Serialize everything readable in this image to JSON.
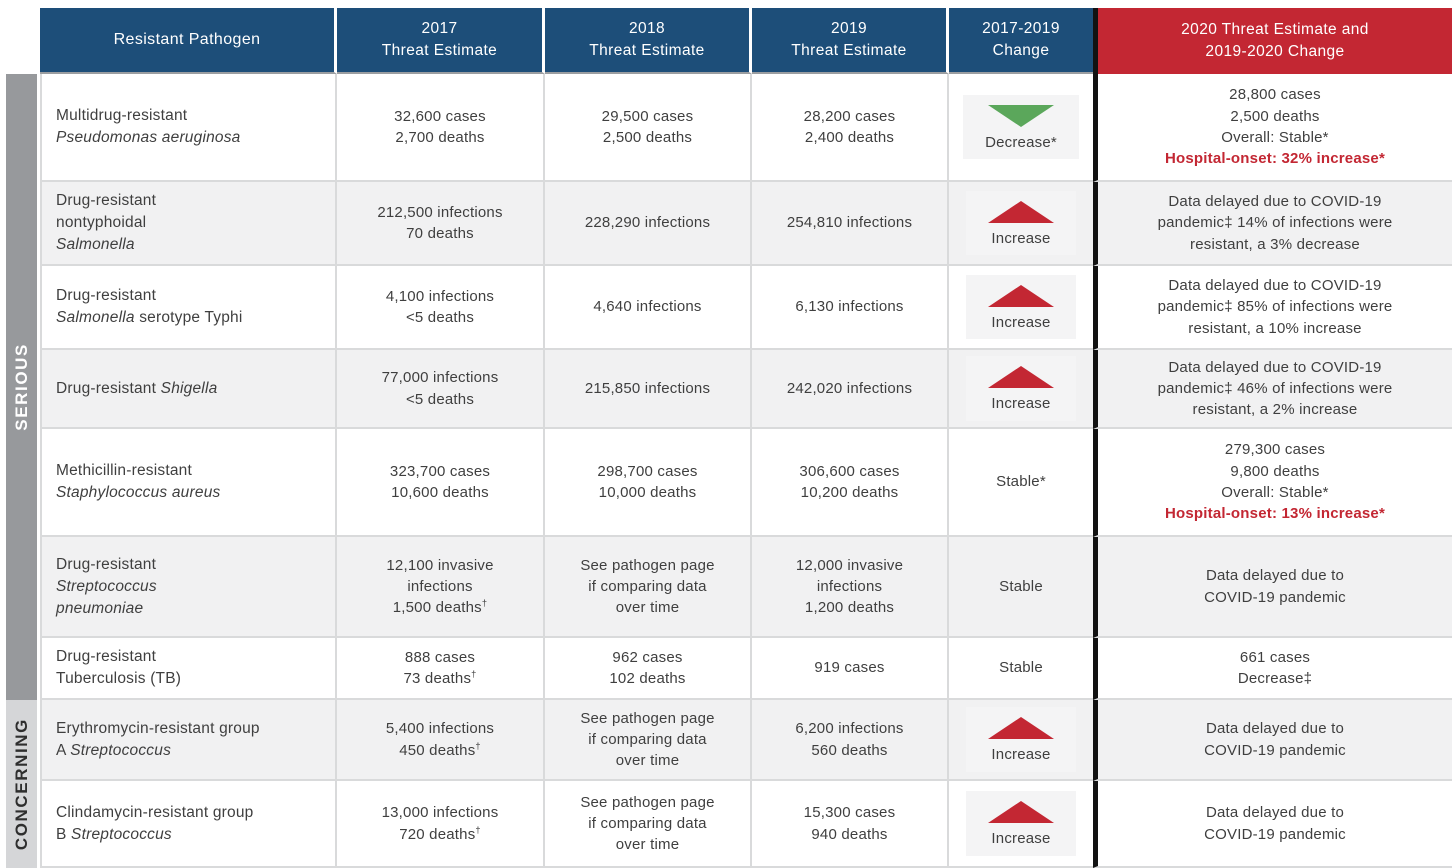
{
  "colors": {
    "header_blue": "#1d4e79",
    "header_red": "#c32733",
    "increase_red": "#c32733",
    "decrease_green": "#5ba75b",
    "band_serious_gray": "#97999c",
    "band_concerning_gray": "#d5d6d8"
  },
  "chart_data": {
    "type": "table",
    "header": {
      "pathogen": {
        "line1": "Resistant Pathogen"
      },
      "y2017": {
        "line1": "2017",
        "line2": "Threat Estimate"
      },
      "y2018": {
        "line1": "2018",
        "line2": "Threat Estimate"
      },
      "y2019": {
        "line1": "2019",
        "line2": "Threat Estimate"
      },
      "change": {
        "line1": "2017-2019",
        "line2": "Change"
      },
      "y2020": {
        "line1": "2020 Threat Estimate and",
        "line2": "2019-2020 Change"
      }
    },
    "sections": [
      {
        "label": "SERIOUS",
        "row_count": 7
      },
      {
        "label": "CONCERNING",
        "row_count": 2
      }
    ],
    "rows": [
      {
        "section": "SERIOUS",
        "pathogen": [
          [
            {
              "t": "Multidrug-resistant"
            }
          ],
          [
            {
              "t": "Pseudomonas aeruginosa",
              "i": true
            }
          ]
        ],
        "est_2017": [
          "32,600 cases",
          "2,700 deaths"
        ],
        "est_2018": [
          "29,500 cases",
          "2,500 deaths"
        ],
        "est_2019": [
          "28,200 cases",
          "2,400 deaths"
        ],
        "change": {
          "direction": "decrease",
          "label": "Decrease*"
        },
        "est_2020": [
          {
            "text": "28,800 cases"
          },
          {
            "text": "2,500 deaths"
          },
          {
            "text": "Overall: Stable*"
          },
          {
            "text": "Hospital-onset: 32% increase*",
            "highlight": true
          }
        ]
      },
      {
        "section": "SERIOUS",
        "pathogen": [
          [
            {
              "t": "Drug-resistant"
            }
          ],
          [
            {
              "t": "nontyphoidal"
            }
          ],
          [
            {
              "t": "Salmonella",
              "i": true
            }
          ]
        ],
        "est_2017": [
          "212,500 infections",
          "70 deaths"
        ],
        "est_2018": [
          "228,290 infections"
        ],
        "est_2019": [
          "254,810 infections"
        ],
        "change": {
          "direction": "increase",
          "label": "Increase"
        },
        "est_2020": [
          {
            "text": "Data delayed due to COVID-19"
          },
          {
            "text": "pandemic‡ 14% of infections were"
          },
          {
            "text": "resistant, a 3% decrease"
          }
        ]
      },
      {
        "section": "SERIOUS",
        "pathogen": [
          [
            {
              "t": "Drug-resistant"
            }
          ],
          [
            {
              "t": "Salmonella",
              "i": true
            },
            {
              "t": " serotype Typhi"
            }
          ]
        ],
        "est_2017": [
          "4,100 infections",
          "<5 deaths"
        ],
        "est_2018": [
          "4,640 infections"
        ],
        "est_2019": [
          "6,130 infections"
        ],
        "change": {
          "direction": "increase",
          "label": "Increase"
        },
        "est_2020": [
          {
            "text": "Data delayed due to COVID-19"
          },
          {
            "text": "pandemic‡ 85% of infections were"
          },
          {
            "text": "resistant, a 10% increase"
          }
        ]
      },
      {
        "section": "SERIOUS",
        "pathogen": [
          [
            {
              "t": "Drug-resistant "
            },
            {
              "t": "Shigella",
              "i": true
            }
          ]
        ],
        "est_2017": [
          "77,000 infections",
          "<5 deaths"
        ],
        "est_2018": [
          "215,850 infections"
        ],
        "est_2019": [
          "242,020 infections"
        ],
        "change": {
          "direction": "increase",
          "label": "Increase"
        },
        "est_2020": [
          {
            "text": "Data delayed due to COVID-19"
          },
          {
            "text": "pandemic‡ 46% of infections were"
          },
          {
            "text": "resistant, a 2% increase"
          }
        ]
      },
      {
        "section": "SERIOUS",
        "pathogen": [
          [
            {
              "t": "Methicillin-resistant"
            }
          ],
          [
            {
              "t": "Staphylococcus aureus",
              "i": true
            }
          ]
        ],
        "est_2017": [
          "323,700 cases",
          "10,600 deaths"
        ],
        "est_2018": [
          "298,700 cases",
          "10,000 deaths"
        ],
        "est_2019": [
          "306,600 cases",
          "10,200 deaths"
        ],
        "change": {
          "direction": "stable",
          "label": "Stable*"
        },
        "est_2020": [
          {
            "text": "279,300 cases"
          },
          {
            "text": "9,800 deaths"
          },
          {
            "text": "Overall: Stable*"
          },
          {
            "text": "Hospital-onset: 13% increase*",
            "highlight": true
          }
        ]
      },
      {
        "section": "SERIOUS",
        "pathogen": [
          [
            {
              "t": "Drug-resistant"
            }
          ],
          [
            {
              "t": "Streptococcus",
              "i": true
            }
          ],
          [
            {
              "t": "pneumoniae",
              "i": true
            }
          ]
        ],
        "est_2017": [
          "12,100 invasive",
          "infections",
          "1,500 deaths†"
        ],
        "est_2018": [
          "See pathogen page",
          "if comparing data",
          "over time"
        ],
        "est_2019": [
          "12,000 invasive",
          "infections",
          "1,200 deaths"
        ],
        "change": {
          "direction": "stable",
          "label": "Stable"
        },
        "est_2020": [
          {
            "text": "Data delayed due to"
          },
          {
            "text": "COVID-19 pandemic"
          }
        ]
      },
      {
        "section": "SERIOUS",
        "pathogen": [
          [
            {
              "t": "Drug-resistant"
            }
          ],
          [
            {
              "t": "Tuberculosis (TB)"
            }
          ]
        ],
        "est_2017": [
          "888 cases",
          "73 deaths†"
        ],
        "est_2018": [
          "962 cases",
          "102 deaths"
        ],
        "est_2019": [
          "919 cases"
        ],
        "change": {
          "direction": "stable",
          "label": "Stable"
        },
        "est_2020": [
          {
            "text": "661 cases"
          },
          {
            "text": "Decrease‡"
          }
        ]
      },
      {
        "section": "CONCERNING",
        "pathogen": [
          [
            {
              "t": "Erythromycin-resistant group"
            }
          ],
          [
            {
              "t": "A "
            },
            {
              "t": "Streptococcus",
              "i": true
            }
          ]
        ],
        "est_2017": [
          "5,400 infections",
          "450 deaths†"
        ],
        "est_2018": [
          "See pathogen page",
          "if comparing data",
          "over time"
        ],
        "est_2019": [
          "6,200 infections",
          "560 deaths"
        ],
        "change": {
          "direction": "increase",
          "label": "Increase"
        },
        "est_2020": [
          {
            "text": "Data delayed due to"
          },
          {
            "text": "COVID-19 pandemic"
          }
        ]
      },
      {
        "section": "CONCERNING",
        "pathogen": [
          [
            {
              "t": "Clindamycin-resistant group"
            }
          ],
          [
            {
              "t": "B "
            },
            {
              "t": "Streptococcus",
              "i": true
            }
          ]
        ],
        "est_2017": [
          "13,000 infections",
          "720 deaths†"
        ],
        "est_2018": [
          "See pathogen page",
          "if comparing data",
          "over time"
        ],
        "est_2019": [
          "15,300 cases",
          "940 deaths"
        ],
        "change": {
          "direction": "increase",
          "label": "Increase"
        },
        "est_2020": [
          {
            "text": "Data delayed due to"
          },
          {
            "text": "COVID-19 pandemic"
          }
        ]
      }
    ]
  }
}
